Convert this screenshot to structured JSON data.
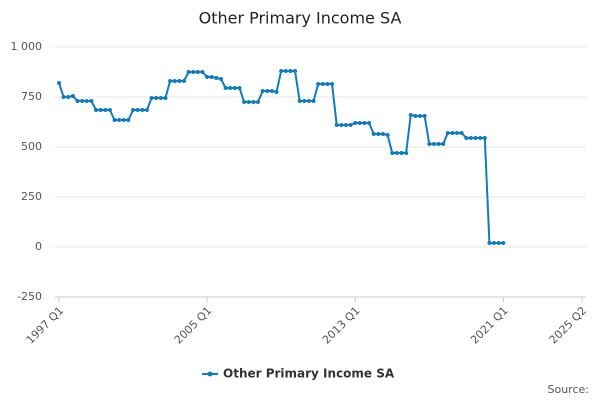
{
  "chart_data": {
    "type": "line",
    "title": "Other Primary Income SA",
    "categories": [
      "1997 Q1",
      null,
      null,
      null,
      null,
      null,
      null,
      null,
      null,
      null,
      null,
      null,
      null,
      null,
      null,
      null,
      null,
      null,
      null,
      null,
      null,
      null,
      null,
      null,
      null,
      null,
      null,
      null,
      null,
      null,
      null,
      null,
      "2005 Q1",
      null,
      null,
      null,
      null,
      null,
      null,
      null,
      null,
      null,
      null,
      null,
      null,
      null,
      null,
      null,
      null,
      null,
      null,
      null,
      null,
      null,
      null,
      null,
      null,
      null,
      null,
      null,
      null,
      null,
      null,
      null,
      "2013 Q1",
      null,
      null,
      null,
      null,
      null,
      null,
      null,
      null,
      null,
      null,
      null,
      null,
      null,
      null,
      null,
      null,
      null,
      null,
      null,
      null,
      null,
      null,
      null,
      null,
      null,
      null,
      null,
      null,
      null,
      null,
      null,
      "2021 Q1",
      null,
      null,
      null,
      null,
      null,
      null,
      null,
      null,
      null,
      null,
      null,
      null,
      null,
      null,
      null,
      null,
      "2025 Q2"
    ],
    "series": [
      {
        "name": "Other Primary Income SA",
        "color": "#0f7cbf",
        "values": [
          820,
          750,
          750,
          755,
          730,
          730,
          730,
          730,
          685,
          685,
          685,
          685,
          635,
          635,
          635,
          635,
          685,
          685,
          685,
          685,
          745,
          745,
          745,
          745,
          830,
          830,
          830,
          830,
          875,
          875,
          875,
          875,
          850,
          850,
          845,
          840,
          795,
          795,
          795,
          795,
          725,
          725,
          725,
          725,
          780,
          780,
          780,
          775,
          880,
          880,
          880,
          880,
          730,
          730,
          730,
          730,
          815,
          815,
          815,
          815,
          610,
          610,
          610,
          610,
          620,
          620,
          620,
          620,
          565,
          565,
          565,
          560,
          470,
          470,
          470,
          470,
          660,
          655,
          655,
          655,
          515,
          515,
          515,
          515,
          570,
          570,
          570,
          570,
          545,
          545,
          545,
          545,
          545,
          20,
          20,
          20,
          20,
          null,
          null,
          null,
          null,
          null,
          null,
          null,
          null,
          null,
          null,
          null,
          null,
          null,
          null,
          null,
          null,
          null
        ]
      }
    ],
    "ylim": [
      -250,
      1000
    ],
    "yticks": [
      -250,
      0,
      250,
      500,
      750,
      {
        "value": 1000,
        "label": "1 000"
      }
    ],
    "grid": true,
    "legend": "bottom",
    "source": "Source:"
  }
}
